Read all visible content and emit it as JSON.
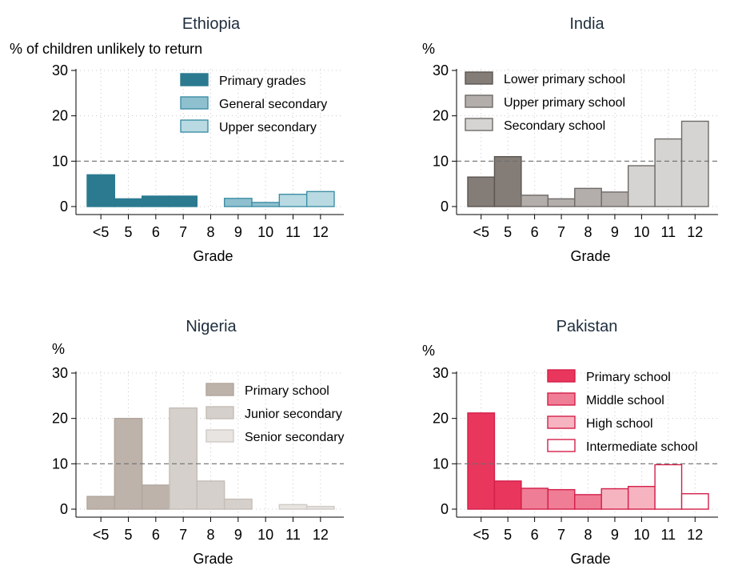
{
  "chart_data": [
    {
      "type": "bar",
      "title": "Ethiopia",
      "ylabel": "% of children unlikely to return",
      "xlabel": "Grade",
      "categories": [
        "<5",
        "5",
        "6",
        "7",
        "8",
        "9",
        "10",
        "11",
        "12"
      ],
      "yticks": [
        "0",
        "10",
        "20",
        "30"
      ],
      "ylim": [
        0,
        32
      ],
      "reference_line": 10,
      "grid": true,
      "legend_position": "top-right",
      "series": [
        {
          "name": "Primary grades",
          "color": "#2b7a90",
          "fill": "#2b7a90",
          "values": [
            7.0,
            1.7,
            2.3,
            2.3,
            null,
            null,
            null,
            null,
            null
          ]
        },
        {
          "name": "General secondary",
          "color": "#3e8fa6",
          "fill": "#8fc0cf",
          "values": [
            null,
            null,
            null,
            null,
            null,
            1.8,
            0.9,
            null,
            null
          ]
        },
        {
          "name": "Upper secondary",
          "color": "#3e8fa6",
          "fill": "#b9dae3",
          "values": [
            null,
            null,
            null,
            null,
            null,
            null,
            null,
            2.7,
            3.3
          ]
        }
      ]
    },
    {
      "type": "bar",
      "title": "India",
      "ylabel": "%",
      "xlabel": "Grade",
      "categories": [
        "<5",
        "5",
        "6",
        "7",
        "8",
        "9",
        "10",
        "11",
        "12"
      ],
      "yticks": [
        "0",
        "10",
        "20",
        "30"
      ],
      "ylim": [
        0,
        32
      ],
      "reference_line": 10,
      "grid": true,
      "legend_position": "top-left",
      "series": [
        {
          "name": "Lower primary school",
          "color": "#5b5551",
          "fill": "#847c77",
          "values": [
            6.5,
            11.0,
            null,
            null,
            null,
            null,
            null,
            null,
            null
          ]
        },
        {
          "name": "Upper primary school",
          "color": "#6e6a67",
          "fill": "#b3aeab",
          "values": [
            null,
            null,
            2.5,
            1.7,
            4.0,
            3.2,
            null,
            null,
            null
          ]
        },
        {
          "name": "Secondary school",
          "color": "#6e6a67",
          "fill": "#d6d4d2",
          "values": [
            null,
            null,
            null,
            null,
            null,
            null,
            9.0,
            14.9,
            18.8
          ]
        }
      ]
    },
    {
      "type": "bar",
      "title": "Nigeria",
      "ylabel": "%",
      "xlabel": "Grade",
      "categories": [
        "<5",
        "5",
        "6",
        "7",
        "8",
        "9",
        "10",
        "11",
        "12"
      ],
      "yticks": [
        "0",
        "10",
        "20",
        "30"
      ],
      "ylim": [
        0,
        32
      ],
      "reference_line": 10,
      "grid": true,
      "legend_position": "top-right",
      "series": [
        {
          "name": "Primary school",
          "color": "#b0a69d",
          "fill": "#bdb3ab",
          "values": [
            2.8,
            20.0,
            5.3,
            null,
            null,
            null,
            null,
            null,
            null
          ]
        },
        {
          "name": "Junior secondary",
          "color": "#c4bdb6",
          "fill": "#d5d0cb",
          "values": [
            null,
            null,
            null,
            22.3,
            6.2,
            2.2,
            null,
            null,
            null
          ]
        },
        {
          "name": "Senior secondary",
          "color": "#cfcac5",
          "fill": "#e7e4e1",
          "values": [
            null,
            null,
            null,
            null,
            null,
            null,
            null,
            1.0,
            0.6
          ]
        }
      ]
    },
    {
      "type": "bar",
      "title": "Pakistan",
      "ylabel": "%",
      "xlabel": "Grade",
      "categories": [
        "<5",
        "5",
        "6",
        "7",
        "8",
        "9",
        "10",
        "11",
        "12"
      ],
      "yticks": [
        "0",
        "10",
        "20",
        "30"
      ],
      "ylim": [
        0,
        32
      ],
      "reference_line": 10,
      "grid": true,
      "legend_position": "top-right",
      "series": [
        {
          "name": "Primary school",
          "color": "#d41f4a",
          "fill": "#e8365c",
          "values": [
            21.2,
            6.2,
            null,
            null,
            null,
            null,
            null,
            null,
            null
          ]
        },
        {
          "name": "Middle school",
          "color": "#d41f4a",
          "fill": "#ef7d95",
          "values": [
            null,
            null,
            4.6,
            4.3,
            3.2,
            null,
            null,
            null,
            null
          ]
        },
        {
          "name": "High school",
          "color": "#d41f4a",
          "fill": "#f6b4c1",
          "values": [
            null,
            null,
            null,
            null,
            null,
            4.5,
            5.0,
            null,
            null
          ]
        },
        {
          "name": "Intermediate school",
          "color": "#d41f4a",
          "fill": "#ffffff",
          "values": [
            null,
            null,
            null,
            null,
            null,
            null,
            null,
            9.8,
            3.4
          ]
        }
      ]
    }
  ]
}
